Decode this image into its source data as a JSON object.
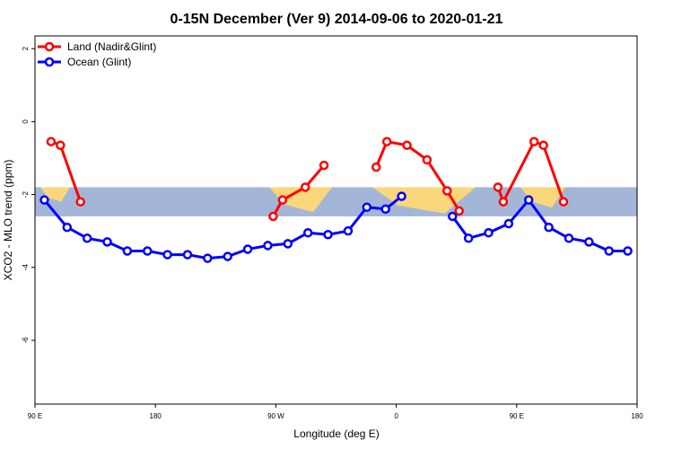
{
  "chart_data": {
    "type": "line",
    "title": "0-15N December (Ver 9)   2014-09-06 to 2020-01-21",
    "xlabel": "Longitude (deg E)",
    "ylabel": "XCO2 - MLO trend (ppm)",
    "xlim": [
      90,
      540
    ],
    "ylim": [
      -7.75,
      2.35
    ],
    "x_ticks": [
      {
        "value": 90,
        "label": "90 E"
      },
      {
        "value": 180,
        "label": "180"
      },
      {
        "value": 270,
        "label": "90 W"
      },
      {
        "value": 360,
        "label": "0"
      },
      {
        "value": 450,
        "label": "90 E"
      },
      {
        "value": 540,
        "label": "180"
      }
    ],
    "y_ticks": [
      {
        "value": 2,
        "label": "2"
      },
      {
        "value": 0,
        "label": "0"
      },
      {
        "value": -2,
        "label": "-2"
      },
      {
        "value": -4,
        "label": "-4"
      },
      {
        "value": -6,
        "label": "-6"
      }
    ],
    "band": {
      "ymin": -2.6,
      "ymax": -1.8,
      "color": "#a3b6d8",
      "land_color": "#f9d77a"
    },
    "legend_position": "top-left",
    "series": [
      {
        "name": "Land (Nadir&Glint)",
        "color": "#ff0000",
        "segments": [
          [
            [
              102,
              -0.55
            ],
            [
              109,
              -0.65
            ],
            [
              124,
              -2.2
            ]
          ],
          [
            [
              268,
              -2.6
            ],
            [
              275,
              -2.15
            ],
            [
              292,
              -1.8
            ],
            [
              306,
              -1.2
            ]
          ],
          [
            [
              345,
              -1.25
            ],
            [
              353,
              -0.55
            ],
            [
              368,
              -0.65
            ],
            [
              383,
              -1.05
            ],
            [
              398,
              -1.9
            ],
            [
              407,
              -2.45
            ]
          ],
          [
            [
              436,
              -1.8
            ],
            [
              440,
              -2.2
            ],
            [
              463,
              -0.55
            ],
            [
              470,
              -0.65
            ],
            [
              485,
              -2.2
            ]
          ]
        ]
      },
      {
        "name": "Ocean (Glint)",
        "color": "#0000ff",
        "segments": [
          [
            [
              97,
              -2.15
            ],
            [
              114,
              -2.9
            ],
            [
              129,
              -3.2
            ],
            [
              144,
              -3.3
            ],
            [
              159,
              -3.55
            ],
            [
              174,
              -3.55
            ],
            [
              189,
              -3.65
            ],
            [
              204,
              -3.65
            ],
            [
              219,
              -3.75
            ],
            [
              234,
              -3.7
            ],
            [
              249,
              -3.5
            ],
            [
              264,
              -3.4
            ],
            [
              279,
              -3.35
            ],
            [
              294,
              -3.05
            ],
            [
              309,
              -3.1
            ],
            [
              324,
              -3.0
            ],
            [
              338,
              -2.35
            ],
            [
              352,
              -2.4
            ],
            [
              364,
              -2.05
            ]
          ],
          [
            [
              402,
              -2.6
            ],
            [
              414,
              -3.2
            ],
            [
              429,
              -3.05
            ],
            [
              444,
              -2.8
            ],
            [
              459,
              -2.15
            ],
            [
              474,
              -2.9
            ],
            [
              489,
              -3.2
            ],
            [
              504,
              -3.3
            ],
            [
              519,
              -3.55
            ],
            [
              533,
              -3.55
            ]
          ]
        ]
      }
    ]
  }
}
